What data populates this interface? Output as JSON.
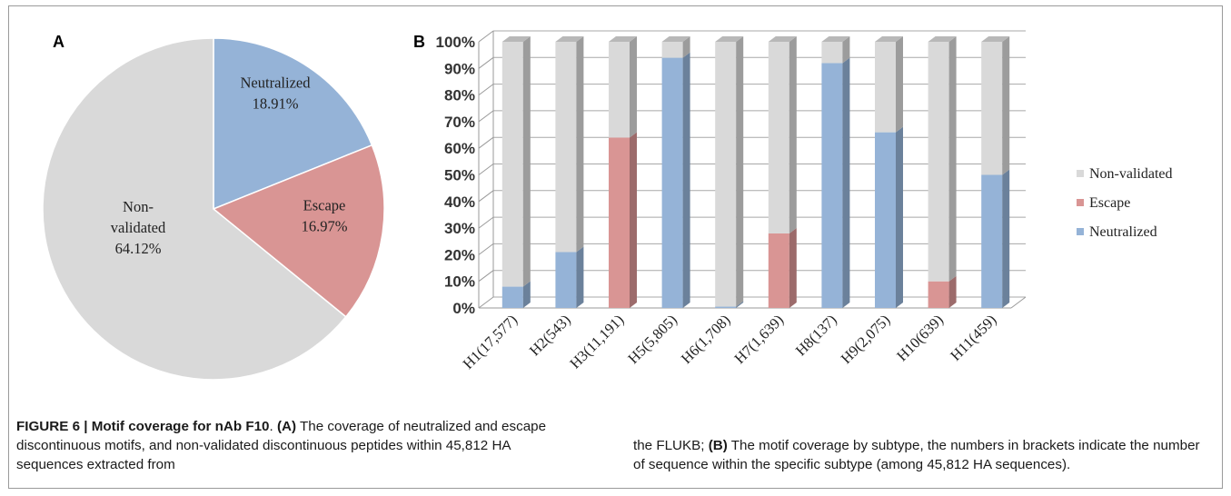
{
  "panels": {
    "a_label": "A",
    "b_label": "B"
  },
  "chart_data": [
    {
      "type": "pie",
      "slices": [
        {
          "name": "Neutralized",
          "value": 18.91,
          "label": "18.91%",
          "color": "#95b3d7"
        },
        {
          "name": "Escape",
          "value": 16.97,
          "label": "16.97%",
          "color": "#d99594"
        },
        {
          "name": "Non-validated",
          "name_lines": [
            "Non-",
            "validated"
          ],
          "value": 64.12,
          "label": "64.12%",
          "color": "#d9d9d9"
        }
      ]
    },
    {
      "type": "bar",
      "stacked": true,
      "percent": true,
      "categories": [
        "H1(17,577)",
        "H2(543)",
        "H3(11,191)",
        "H5(5,805)",
        "H6(1,708)",
        "H7(1,639)",
        "H8(137)",
        "H9(2,075)",
        "H10(639)",
        "H11(459)"
      ],
      "series": [
        {
          "name": "Neutralized",
          "color": "#95b3d7",
          "values": [
            8,
            21,
            0,
            94,
            0.5,
            0,
            92,
            66,
            0,
            50
          ]
        },
        {
          "name": "Escape",
          "color": "#d99594",
          "values": [
            0,
            0,
            64,
            0,
            0,
            28,
            0,
            0,
            10,
            0
          ]
        },
        {
          "name": "Non-validated",
          "color": "#d9d9d9",
          "values": [
            92,
            79,
            36,
            6,
            99.5,
            72,
            8,
            34,
            90,
            50
          ]
        }
      ],
      "y_ticks": [
        "0%",
        "10%",
        "20%",
        "30%",
        "40%",
        "50%",
        "60%",
        "70%",
        "80%",
        "90%",
        "100%"
      ],
      "ylim": [
        0,
        100
      ],
      "legend": [
        "Non-validated",
        "Escape",
        "Neutralized"
      ],
      "legend_position": "right",
      "grid": true
    }
  ],
  "caption": {
    "left_bold": "FIGURE 6 | Motif coverage for nAb F10",
    "left_sep": ". ",
    "left_a": "(A)",
    "left_text": " The coverage of neutralized and escape discontinuous motifs, and non-validated discontinuous peptides within 45,812 HA sequences extracted from",
    "right_text1": "the FLUKB; ",
    "right_b": "(B)",
    "right_text2": " The motif coverage by subtype, the numbers in brackets indicate the number of sequence within the specific subtype (among 45,812 HA sequences)."
  }
}
